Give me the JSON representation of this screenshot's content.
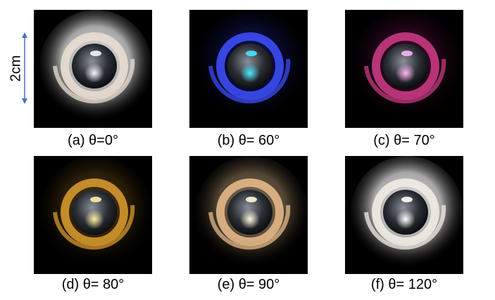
{
  "scale_bar": {
    "label": "2cm",
    "color": "#4472c4"
  },
  "panels": [
    {
      "caption": "(a) θ=0°",
      "glow": "#ffffff",
      "ring": "#e8ddd0",
      "core": "#f4f4ff",
      "halo": 1.0
    },
    {
      "caption": "(b) θ= 60°",
      "glow": "#2a3cff",
      "ring": "#3d4cf5",
      "core": "#49e6ff",
      "halo": 0.0
    },
    {
      "caption": "(c) θ= 70°",
      "glow": "#c0208a",
      "ring": "#c83a82",
      "core": "#ffb3f4",
      "halo": 0.0
    },
    {
      "caption": "(d) θ= 80°",
      "glow": "#c98a2a",
      "ring": "#d4982e",
      "core": "#fff1a0",
      "halo": 0.1
    },
    {
      "caption": "(e) θ= 90°",
      "glow": "#e9c595",
      "ring": "#e4b888",
      "core": "#fff8dc",
      "halo": 0.4
    },
    {
      "caption": "(f) θ= 120°",
      "glow": "#ffffff",
      "ring": "#f0ece6",
      "core": "#ffffff",
      "halo": 1.0
    }
  ]
}
